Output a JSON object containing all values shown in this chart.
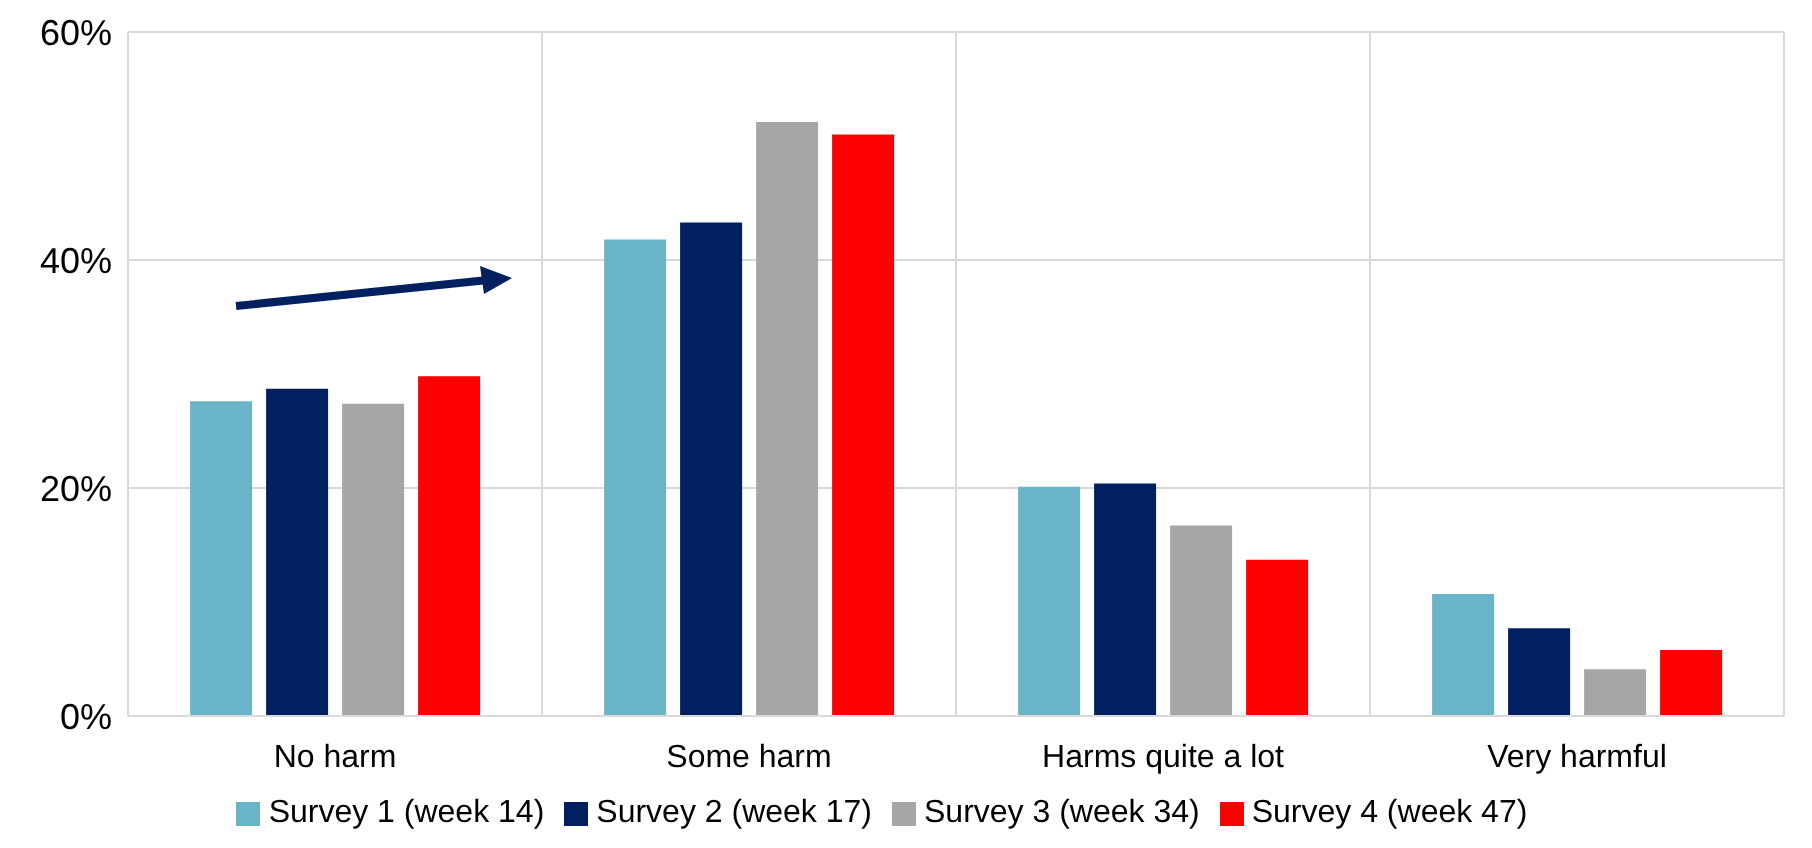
{
  "chart_data": {
    "type": "bar",
    "categories": [
      "No harm",
      "Some harm",
      "Harms quite a lot",
      "Very harmful"
    ],
    "series": [
      {
        "name": "Survey 1 (week 14)",
        "color": "#6ab4c8",
        "values": [
          27.6,
          41.8,
          20.1,
          10.7
        ]
      },
      {
        "name": "Survey 2 (week 17)",
        "color": "#002060",
        "values": [
          28.7,
          43.3,
          20.4,
          7.7
        ]
      },
      {
        "name": "Survey 3 (week 34)",
        "color": "#a6a6a6",
        "values": [
          27.4,
          52.1,
          16.7,
          4.1
        ]
      },
      {
        "name": "Survey 4 (week 47)",
        "color": "#ff0000",
        "values": [
          29.8,
          51,
          13.7,
          5.8
        ]
      }
    ],
    "ylim": [
      0,
      60
    ],
    "yticks": [
      {
        "value": 0,
        "label": "0%"
      },
      {
        "value": 20,
        "label": "20%"
      },
      {
        "value": 40,
        "label": "40%"
      },
      {
        "value": 60,
        "label": "60%"
      }
    ],
    "grid": true,
    "legend": "bottom"
  }
}
